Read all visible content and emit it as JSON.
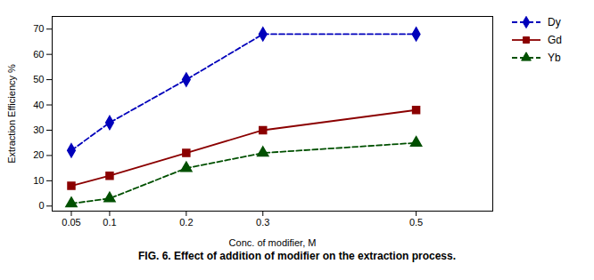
{
  "chart_data": {
    "type": "line",
    "caption": "FIG. 6. Effect of addition of modifier on the extraction process.",
    "xlabel": "Conc. of modifier, M",
    "ylabel": "Extraction Efficiency %",
    "x": [
      0.05,
      0.1,
      0.2,
      0.3,
      0.5
    ],
    "series": [
      {
        "name": "Dy",
        "color": "#0000BB",
        "values": [
          22,
          33,
          50,
          68,
          68
        ],
        "marker": "diamond",
        "line_style": "dashed"
      },
      {
        "name": "Gd",
        "color": "#8B0000",
        "values": [
          8,
          12,
          21,
          30,
          38
        ],
        "marker": "square",
        "line_style": "solid"
      },
      {
        "name": "Yb",
        "color": "#005000",
        "values": [
          1,
          3,
          15,
          21,
          25
        ],
        "marker": "triangle",
        "line_style": "dashed"
      }
    ],
    "xlim": [
      0.025,
      0.6
    ],
    "xticks": [
      0.05,
      0.1,
      0.2,
      0.3,
      0.5
    ],
    "ylim": [
      -2,
      75
    ],
    "yticks": [
      0,
      10,
      20,
      30,
      40,
      50,
      60,
      70
    ],
    "grid": false,
    "legend": "upper right"
  }
}
